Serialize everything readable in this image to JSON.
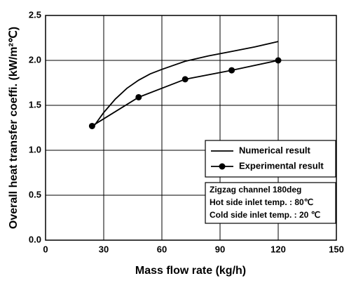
{
  "chart_data": {
    "type": "line",
    "xlabel": "Mass flow rate (kg/h)",
    "ylabel": "Overall heat transfer coeffi. (kW/m²℃)",
    "xlim": [
      0,
      150
    ],
    "xticks": [
      0,
      30,
      60,
      90,
      120,
      150
    ],
    "ylim": [
      0,
      2.5
    ],
    "yticks": [
      {
        "value": 0,
        "label": "0.0"
      },
      0.5,
      {
        "value": 1,
        "label": "1.0"
      },
      1.5,
      {
        "value": 2,
        "label": "2.0"
      },
      2.5
    ],
    "grid": true,
    "series": [
      {
        "name": "Numerical result",
        "color": "#000000",
        "marker": "none",
        "x": [
          24,
          30,
          36,
          42,
          48,
          54,
          60,
          72,
          84,
          96,
          108,
          120
        ],
        "values": [
          1.24,
          1.42,
          1.57,
          1.69,
          1.78,
          1.85,
          1.9,
          1.99,
          2.05,
          2.1,
          2.15,
          2.21
        ]
      },
      {
        "name": "Experimental result",
        "color": "#000000",
        "marker": "circle",
        "x": [
          24,
          48,
          72,
          96,
          120
        ],
        "values": [
          1.27,
          1.59,
          1.79,
          1.89,
          2.0
        ]
      }
    ],
    "annotation": [
      "Zigzag channel 180deg",
      "Hot side inlet temp. : 80℃",
      "Cold side inlet temp. : 20 ℃"
    ]
  }
}
